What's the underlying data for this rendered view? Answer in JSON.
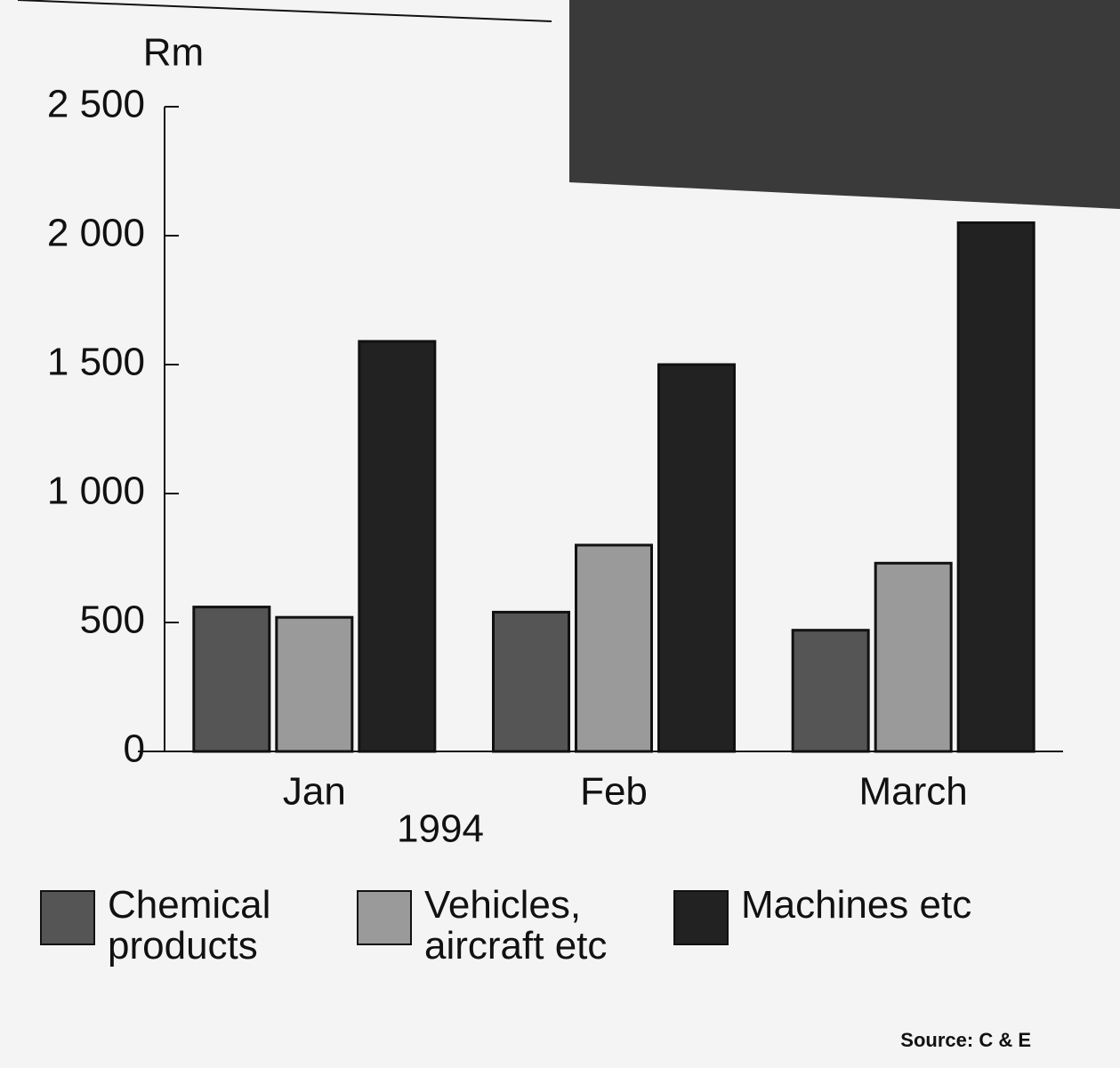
{
  "chart_data": {
    "type": "bar",
    "y_label": "Rm",
    "x_label": "1994",
    "categories": [
      "Jan",
      "Feb",
      "March"
    ],
    "series": [
      {
        "name": "Chemical products",
        "color": "#555555",
        "values": [
          560,
          540,
          470
        ]
      },
      {
        "name": "Vehicles, aircraft etc",
        "color": "#9a9a9a",
        "values": [
          520,
          800,
          730
        ]
      },
      {
        "name": "Machines etc",
        "color": "#222222",
        "values": [
          1590,
          1500,
          2050
        ]
      }
    ],
    "ylim": [
      0,
      2500
    ],
    "yticks": [
      0,
      500,
      {
        "value": 1000,
        "label": "1 000"
      },
      {
        "value": 1500,
        "label": "1 500"
      },
      {
        "value": 2000,
        "label": "2 000"
      },
      {
        "value": 2500,
        "label": "2 500"
      }
    ],
    "source": "Source: C & E"
  }
}
